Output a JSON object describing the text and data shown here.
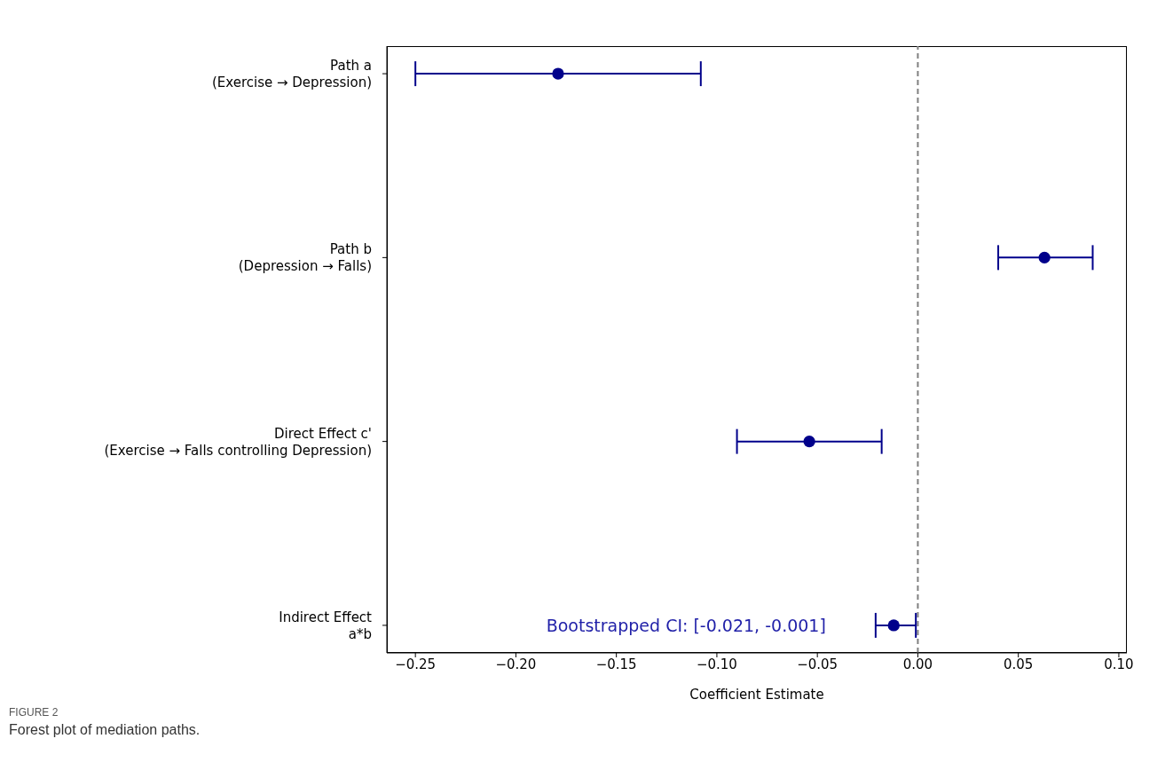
{
  "chart_data": {
    "type": "scatter",
    "xlabel": "Coefficient Estimate",
    "categories": [
      "Path a\n(Exercise → Depression)",
      "Path b\n(Depression → Falls)",
      "Direct Effect c'\n(Exercise → Falls controlling Depression)",
      "Indirect Effect\na*b"
    ],
    "series": [
      {
        "color": "#00008b",
        "values": [
          -0.179,
          0.063,
          -0.054,
          -0.012
        ],
        "errors": [
          [
            -0.25,
            -0.108
          ],
          [
            0.04,
            0.087
          ],
          [
            -0.09,
            -0.018
          ],
          [
            -0.021,
            -0.001
          ]
        ]
      }
    ],
    "xlim": [
      -0.2642,
      0.104
    ],
    "xticks": [
      {
        "value": -0.25,
        "label": "−0.25"
      },
      {
        "value": -0.2,
        "label": "−0.20"
      },
      {
        "value": -0.15,
        "label": "−0.15"
      },
      {
        "value": -0.1,
        "label": "−0.10"
      },
      {
        "value": -0.05,
        "label": "−0.05"
      },
      {
        "value": 0,
        "label": "0.00"
      },
      {
        "value": 0.05,
        "label": "0.05"
      },
      {
        "value": 0.1,
        "label": "0.10"
      }
    ],
    "ref_lines": [
      {
        "axis": "x",
        "value": 0,
        "color": "#808080",
        "line_style": "dashed"
      }
    ],
    "orientation": "horizontal",
    "marker": "circle",
    "grid": false,
    "legend": false,
    "annotations": [
      "Bootstrapped CI: [-0.021, -0.001]",
      "FIGURE 2",
      "Forest plot of mediation paths."
    ]
  }
}
